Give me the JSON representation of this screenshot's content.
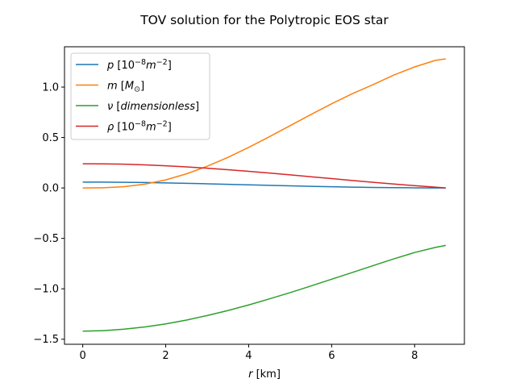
{
  "chart_data": {
    "type": "line",
    "title": "TOV solution for the Polytropic EOS star",
    "xlabel": {
      "var": "r",
      "unit": "[km]"
    },
    "ylabel": "",
    "xlim": [
      -0.44,
      9.2
    ],
    "ylim": [
      -1.55,
      1.4
    ],
    "xticks": [
      0,
      2,
      4,
      6,
      8
    ],
    "yticks": [
      -1.5,
      -1.0,
      -0.5,
      0.0,
      0.5,
      1.0
    ],
    "ytick_labels": [
      "−1.5",
      "−1.0",
      "−0.5",
      "0.0",
      "0.5",
      "1.0"
    ],
    "xtick_labels": [
      "0",
      "2",
      "4",
      "6",
      "8"
    ],
    "legend_position": "upper-left",
    "grid": false,
    "series": [
      {
        "name": {
          "var": "p",
          "bracket": "[10",
          "sup": "−8",
          "var2": "m",
          "sup2": "−2",
          "close": "]"
        },
        "color": "#1f77b4",
        "x": [
          0,
          0.5,
          1,
          1.5,
          2,
          2.5,
          3,
          3.5,
          4,
          4.5,
          5,
          5.5,
          6,
          6.5,
          7,
          7.5,
          8,
          8.5,
          8.75
        ],
        "y": [
          0.058,
          0.0575,
          0.056,
          0.0535,
          0.05,
          0.0458,
          0.0412,
          0.0363,
          0.0312,
          0.026,
          0.021,
          0.0163,
          0.012,
          0.0083,
          0.0052,
          0.0028,
          0.0011,
          0.0002,
          0.0
        ]
      },
      {
        "name": {
          "var": "m",
          "bracket": "[M",
          "sub": "⊙",
          "close": "]"
        },
        "color": "#ff7f0e",
        "x": [
          0,
          0.5,
          1,
          1.5,
          2,
          2.5,
          3,
          3.5,
          4,
          4.5,
          5,
          5.5,
          6,
          6.5,
          7,
          7.5,
          8,
          8.5,
          8.75
        ],
        "y": [
          0.0,
          0.002,
          0.013,
          0.038,
          0.08,
          0.14,
          0.215,
          0.303,
          0.402,
          0.508,
          0.618,
          0.728,
          0.835,
          0.935,
          1.025,
          1.12,
          1.2,
          1.265,
          1.28
        ]
      },
      {
        "name": {
          "var": "ν",
          "bracket": "[",
          "varname": "dimensionless",
          "close": "]"
        },
        "color": "#2ca02c",
        "x": [
          0,
          0.5,
          1,
          1.5,
          2,
          2.5,
          3,
          3.5,
          4,
          4.5,
          5,
          5.5,
          6,
          6.5,
          7,
          7.5,
          8,
          8.5,
          8.75
        ],
        "y": [
          -1.42,
          -1.415,
          -1.4,
          -1.378,
          -1.348,
          -1.31,
          -1.265,
          -1.215,
          -1.16,
          -1.1,
          -1.038,
          -0.972,
          -0.905,
          -0.838,
          -0.77,
          -0.703,
          -0.64,
          -0.59,
          -0.57
        ]
      },
      {
        "name": {
          "var": "ρ",
          "bracket": "[10",
          "sup": "−8",
          "var2": "m",
          "sup2": "−2",
          "close": "]"
        },
        "color": "#d62728",
        "x": [
          0,
          0.5,
          1,
          1.5,
          2,
          2.5,
          3,
          3.5,
          4,
          4.5,
          5,
          5.5,
          6,
          6.5,
          7,
          7.5,
          8,
          8.5,
          8.75
        ],
        "y": [
          0.24,
          0.239,
          0.236,
          0.229,
          0.22,
          0.209,
          0.196,
          0.181,
          0.165,
          0.148,
          0.13,
          0.111,
          0.093,
          0.074,
          0.056,
          0.039,
          0.023,
          0.008,
          0.0
        ]
      }
    ]
  }
}
